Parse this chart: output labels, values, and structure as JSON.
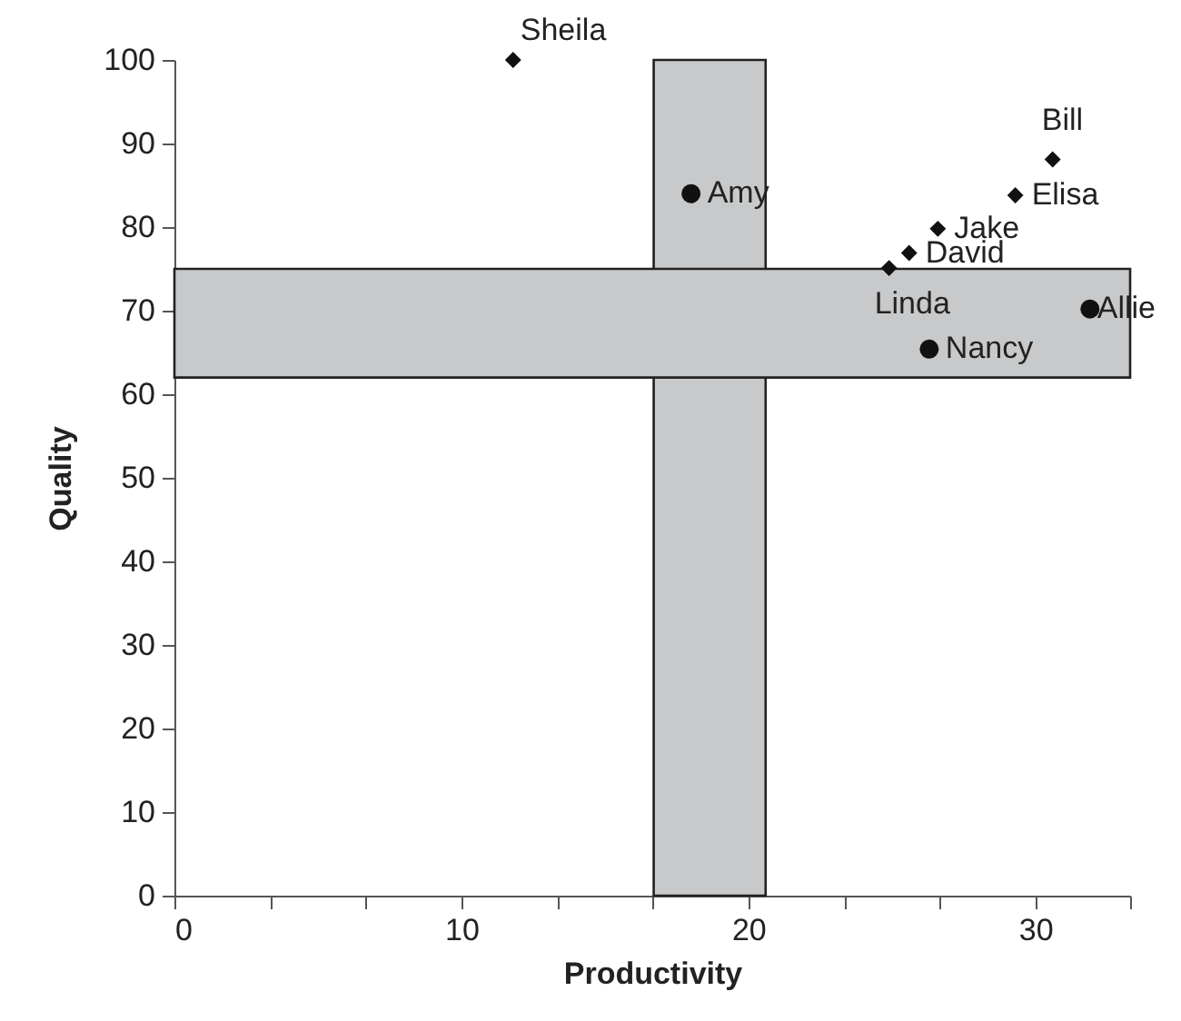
{
  "chart_data": {
    "type": "scatter",
    "xlabel": "Productivity",
    "ylabel": "Quality",
    "xlim": [
      0,
      33.3
    ],
    "ylim": [
      0,
      100
    ],
    "xticks": [
      0,
      {
        "value": 3.33,
        "label": null
      },
      {
        "value": 6.67,
        "label": null
      },
      10,
      {
        "value": 13.33,
        "label": null
      },
      {
        "value": 16.67,
        "label": null
      },
      20,
      {
        "value": 23.33,
        "label": null
      },
      {
        "value": 26.67,
        "label": null
      },
      30,
      {
        "value": 33.3,
        "label": null
      }
    ],
    "yticks": [
      0,
      10,
      20,
      30,
      40,
      50,
      60,
      70,
      80,
      90,
      100
    ],
    "grid": false,
    "bands": [
      {
        "axis": "x",
        "from": 16.7,
        "to": 20.6,
        "color": "#c8c9cb"
      },
      {
        "axis": "y",
        "from": 62,
        "to": 75,
        "color": "#c8c9cb"
      }
    ],
    "series": [
      {
        "color": "#111111",
        "marker": "diamond",
        "x": [
          11.8,
          30.6,
          29.3,
          26.6,
          25.6,
          24.9
        ],
        "values": [
          100,
          88.1,
          83.8,
          79.8,
          76.9,
          75.1
        ]
      },
      {
        "color": "#111111",
        "marker": "circle",
        "x": [
          18.0,
          31.9,
          26.3
        ],
        "values": [
          84.0,
          70.2,
          65.4
        ]
      }
    ],
    "annotations": [
      {
        "text": "Sheila",
        "x": 11.8,
        "y": 100
      },
      {
        "text": "Amy",
        "x": 18.0,
        "y": 84.0
      },
      {
        "text": "Bill",
        "x": 30.6,
        "y": 88.1
      },
      {
        "text": "Elisa",
        "x": 29.3,
        "y": 83.8
      },
      {
        "text": "Jake",
        "x": 26.6,
        "y": 79.8
      },
      {
        "text": "David",
        "x": 25.6,
        "y": 76.9
      },
      {
        "text": "Linda",
        "x": 24.9,
        "y": 75.1
      },
      {
        "text": "Allie",
        "x": 31.9,
        "y": 70.2
      },
      {
        "text": "Nancy",
        "x": 26.3,
        "y": 65.4
      }
    ]
  }
}
